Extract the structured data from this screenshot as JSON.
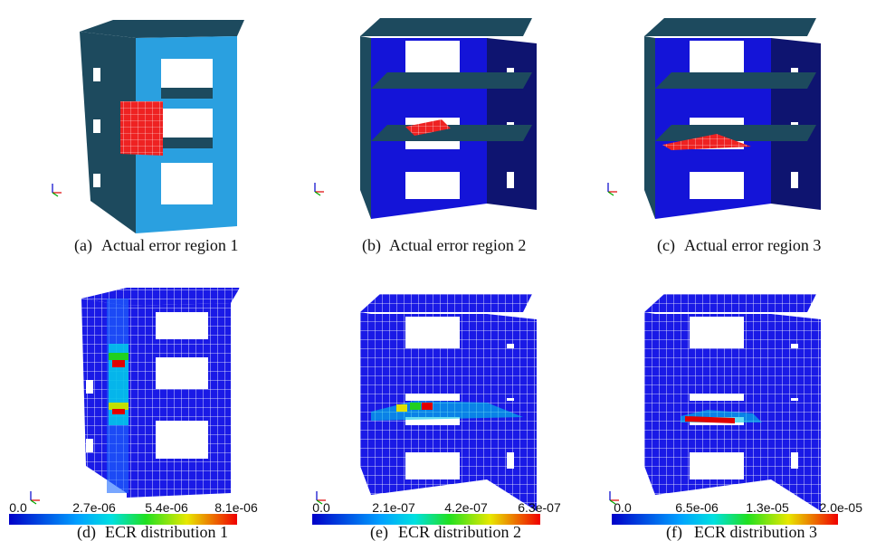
{
  "panels": [
    {
      "label": "(a)",
      "caption": "Actual error region 1"
    },
    {
      "label": "(b)",
      "caption": "Actual error region 2"
    },
    {
      "label": "(c)",
      "caption": "Actual error region 3"
    },
    {
      "label": "(d)",
      "caption": "ECR distribution 1",
      "colorbar_ticks": [
        "0.0",
        "2.7e-06",
        "5.4e-06",
        "8.1e-06"
      ]
    },
    {
      "label": "(e)",
      "caption": "ECR distribution 2",
      "colorbar_ticks": [
        "0.0",
        "2.1e-07",
        "4.2e-07",
        "6.3e-07"
      ]
    },
    {
      "label": "(f)",
      "caption": "ECR distribution 3",
      "colorbar_ticks": [
        "0.0",
        "6.5e-06",
        "1.3e-05",
        "2.0e-05"
      ]
    }
  ]
}
